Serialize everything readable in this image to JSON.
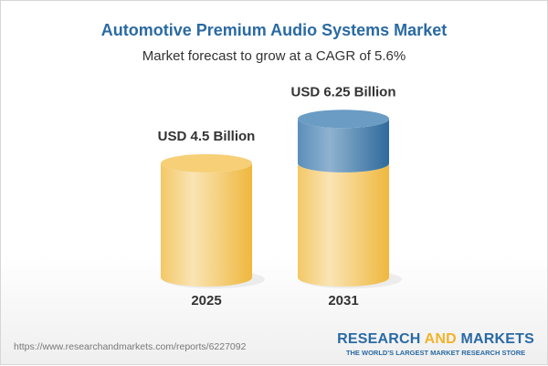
{
  "chart_data": {
    "type": "bar",
    "title": "Automotive Premium Audio Systems Market",
    "subtitle": "Market forecast to grow at a CAGR of 5.6%",
    "categories": [
      "2025",
      "2031"
    ],
    "values": [
      4.5,
      6.25
    ],
    "data_labels": [
      "USD 4.5 Billion",
      "USD 6.25 Billion"
    ],
    "unit": "USD Billion",
    "style": "3d-cylinder",
    "colors": {
      "base": "#f2c35a",
      "base_light": "#f9e2b0",
      "growth": "#3f7db0",
      "growth_light": "#8fb3d0",
      "title": "#2a6aa3"
    }
  },
  "footer": {
    "url": "https://www.researchandmarkets.com/reports/6227092",
    "logo_part1": "RESEARCH ",
    "logo_part2": "AND",
    "logo_part3": " MARKETS",
    "tagline": "THE WORLD'S LARGEST MARKET RESEARCH STORE"
  }
}
